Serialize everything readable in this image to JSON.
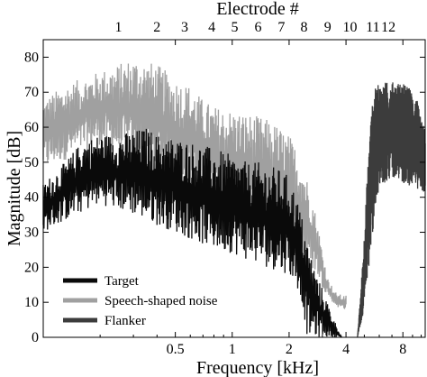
{
  "chart_data": {
    "type": "line",
    "title": "",
    "xlabel": "Frequency [kHz]",
    "ylabel": "Magnitude [dB]",
    "top_axis_label": "Electrode #",
    "x_scale": "log",
    "xlim": [
      0.1,
      10.5
    ],
    "ylim": [
      0,
      85
    ],
    "grid": false,
    "legend_position": "bottom-left",
    "x_ticks": [
      {
        "value": 0.5,
        "label": "0.5"
      },
      {
        "value": 1,
        "label": "1"
      },
      {
        "value": 2,
        "label": "2"
      },
      {
        "value": 4,
        "label": "4"
      },
      {
        "value": 8,
        "label": "8"
      }
    ],
    "y_ticks": [
      {
        "value": 0,
        "label": "0"
      },
      {
        "value": 10,
        "label": "10"
      },
      {
        "value": 20,
        "label": "20"
      },
      {
        "value": 30,
        "label": "30"
      },
      {
        "value": 40,
        "label": "40"
      },
      {
        "value": 50,
        "label": "50"
      },
      {
        "value": 60,
        "label": "60"
      },
      {
        "value": 70,
        "label": "70"
      },
      {
        "value": 80,
        "label": "80"
      }
    ],
    "electrode_ticks": [
      {
        "value": 0.25,
        "label": "1"
      },
      {
        "value": 0.4,
        "label": "2"
      },
      {
        "value": 0.56,
        "label": "3"
      },
      {
        "value": 0.78,
        "label": "4"
      },
      {
        "value": 1.03,
        "label": "5"
      },
      {
        "value": 1.37,
        "label": "6"
      },
      {
        "value": 1.82,
        "label": "7"
      },
      {
        "value": 2.4,
        "label": "8"
      },
      {
        "value": 3.2,
        "label": "9"
      },
      {
        "value": 4.2,
        "label": "10"
      },
      {
        "value": 5.55,
        "label": "11"
      },
      {
        "value": 6.7,
        "label": "12"
      }
    ],
    "series": [
      {
        "name": "Speech-shaped noise",
        "color": "#a0a0a0",
        "lower": [
          [
            0.1,
            48
          ],
          [
            0.15,
            52
          ],
          [
            0.2,
            55
          ],
          [
            0.3,
            50
          ],
          [
            0.4,
            48
          ],
          [
            0.5,
            44
          ],
          [
            0.7,
            40
          ],
          [
            1.0,
            35
          ],
          [
            1.3,
            32
          ],
          [
            1.6,
            28
          ],
          [
            2.0,
            25
          ],
          [
            2.4,
            22
          ],
          [
            2.8,
            18
          ],
          [
            3.0,
            14
          ],
          [
            3.3,
            11
          ],
          [
            3.5,
            9
          ],
          [
            3.8,
            8
          ],
          [
            4.0,
            8
          ]
        ],
        "upper": [
          [
            0.1,
            68
          ],
          [
            0.13,
            72
          ],
          [
            0.16,
            74
          ],
          [
            0.2,
            76
          ],
          [
            0.25,
            78
          ],
          [
            0.3,
            80
          ],
          [
            0.35,
            79
          ],
          [
            0.4,
            78
          ],
          [
            0.45,
            76
          ],
          [
            0.5,
            74
          ],
          [
            0.6,
            72
          ],
          [
            0.7,
            68
          ],
          [
            0.8,
            66
          ],
          [
            1.0,
            65
          ],
          [
            1.2,
            64
          ],
          [
            1.4,
            63
          ],
          [
            1.6,
            62
          ],
          [
            1.8,
            60
          ],
          [
            2.0,
            58
          ],
          [
            2.3,
            52
          ],
          [
            2.6,
            42
          ],
          [
            2.8,
            34
          ],
          [
            3.0,
            25
          ],
          [
            3.2,
            17
          ],
          [
            3.5,
            13
          ],
          [
            3.8,
            12
          ],
          [
            4.0,
            12
          ]
        ]
      },
      {
        "name": "Target",
        "color": "#0a0a0a",
        "lower": [
          [
            0.1,
            30
          ],
          [
            0.15,
            35
          ],
          [
            0.2,
            38
          ],
          [
            0.3,
            35
          ],
          [
            0.4,
            32
          ],
          [
            0.5,
            30
          ],
          [
            0.6,
            28
          ],
          [
            0.8,
            25
          ],
          [
            1.0,
            24
          ],
          [
            1.2,
            22
          ],
          [
            1.5,
            20
          ],
          [
            2.0,
            18
          ],
          [
            2.3,
            12
          ],
          [
            2.5,
            0
          ],
          [
            3.8,
            0
          ]
        ],
        "upper": [
          [
            0.1,
            44
          ],
          [
            0.13,
            50
          ],
          [
            0.16,
            56
          ],
          [
            0.2,
            58
          ],
          [
            0.25,
            58
          ],
          [
            0.3,
            59
          ],
          [
            0.35,
            60
          ],
          [
            0.4,
            58
          ],
          [
            0.5,
            57
          ],
          [
            0.6,
            56
          ],
          [
            0.7,
            55
          ],
          [
            0.8,
            54
          ],
          [
            1.0,
            52
          ],
          [
            1.2,
            50
          ],
          [
            1.4,
            50
          ],
          [
            1.6,
            49
          ],
          [
            1.8,
            48
          ],
          [
            2.0,
            46
          ],
          [
            2.2,
            40
          ],
          [
            2.4,
            32
          ],
          [
            2.6,
            24
          ],
          [
            2.8,
            18
          ],
          [
            3.0,
            14
          ],
          [
            3.2,
            10
          ],
          [
            3.4,
            6
          ],
          [
            3.6,
            3
          ],
          [
            3.8,
            0
          ]
        ]
      },
      {
        "name": "Flanker",
        "color": "#3c3c3c",
        "lower": [
          [
            4.6,
            0
          ],
          [
            4.9,
            6
          ],
          [
            5.3,
            20
          ],
          [
            5.6,
            32
          ],
          [
            6.0,
            42
          ],
          [
            7.0,
            46
          ],
          [
            8.0,
            44
          ],
          [
            9.0,
            43
          ],
          [
            10.0,
            42
          ],
          [
            10.5,
            40
          ]
        ],
        "upper": [
          [
            4.6,
            0
          ],
          [
            4.8,
            14
          ],
          [
            5.0,
            30
          ],
          [
            5.2,
            48
          ],
          [
            5.4,
            62
          ],
          [
            5.6,
            70
          ],
          [
            5.8,
            72
          ],
          [
            6.5,
            73
          ],
          [
            7.5,
            73
          ],
          [
            8.5,
            72
          ],
          [
            9.5,
            68
          ],
          [
            10.0,
            62
          ],
          [
            10.5,
            60
          ]
        ]
      }
    ]
  }
}
